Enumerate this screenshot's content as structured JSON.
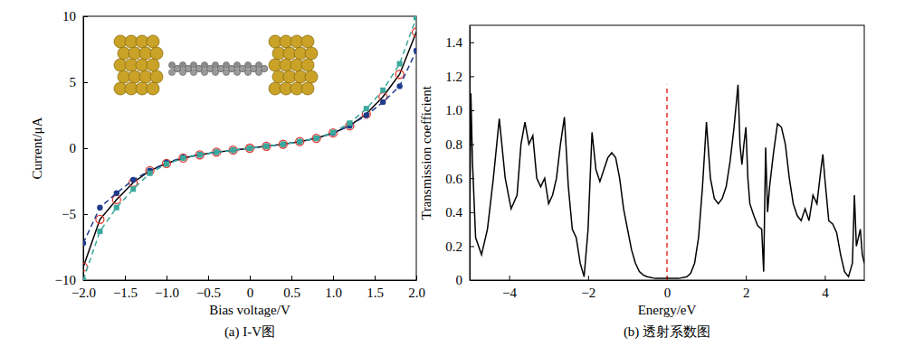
{
  "chart_data": [
    {
      "type": "line",
      "title": "(a) I-V图",
      "x_label": "Bias voltage/V",
      "y_label": "Current/μA",
      "xlim": [
        -2,
        2
      ],
      "ylim": [
        -10,
        10
      ],
      "xticks": [
        {
          "value": -2,
          "label": "−2.0"
        },
        {
          "value": -1.5,
          "label": "−1.5"
        },
        {
          "value": -1,
          "label": "−1.0"
        },
        {
          "value": -0.5,
          "label": "−0.5"
        },
        0,
        0.5,
        {
          "value": 1,
          "label": "1.0"
        },
        1.5,
        {
          "value": 2,
          "label": "2.0"
        }
      ],
      "yticks": [
        {
          "value": -10,
          "label": "−10"
        },
        {
          "value": -5,
          "label": "−5"
        },
        0,
        5,
        10
      ],
      "series": [
        {
          "color": "#000000",
          "line_style": "solid",
          "marker": "none",
          "x": [
            -2,
            -1.8,
            -1.6,
            -1.4,
            -1.2,
            -1,
            -0.8,
            -0.6,
            -0.4,
            -0.2,
            0,
            0.2,
            0.4,
            0.6,
            0.8,
            1,
            1.2,
            1.4,
            1.6,
            1.8,
            2
          ],
          "values": [
            -9.0,
            -5.4,
            -3.9,
            -2.6,
            -1.7,
            -1.15,
            -0.75,
            -0.5,
            -0.3,
            -0.15,
            0,
            0.15,
            0.3,
            0.5,
            0.75,
            1.15,
            1.7,
            2.6,
            3.9,
            5.6,
            8.8
          ]
        },
        {
          "color": "#e03c31",
          "line_style": "none",
          "marker": "open-circle",
          "x": [
            -2,
            -1.8,
            -1.6,
            -1.4,
            -1.2,
            -1,
            -0.8,
            -0.6,
            -0.4,
            -0.2,
            0,
            0.2,
            0.4,
            0.6,
            0.8,
            1,
            1.2,
            1.4,
            1.6,
            1.8,
            2
          ],
          "values": [
            -9.0,
            -5.4,
            -3.9,
            -2.6,
            -1.7,
            -1.15,
            -0.75,
            -0.5,
            -0.3,
            -0.15,
            0,
            0.15,
            0.3,
            0.5,
            0.75,
            1.15,
            1.7,
            2.6,
            3.9,
            5.6,
            8.8
          ]
        },
        {
          "color": "#1f3b8c",
          "line_style": "dashed",
          "marker": "circle",
          "x": [
            -2,
            -1.8,
            -1.6,
            -1.4,
            -1.2,
            -1,
            -0.8,
            -0.6,
            -0.4,
            -0.2,
            0,
            0.2,
            0.4,
            0.6,
            0.8,
            1,
            1.2,
            1.4,
            1.6,
            1.8,
            2
          ],
          "values": [
            -7.2,
            -4.5,
            -3.4,
            -2.4,
            -1.7,
            -1.1,
            -0.7,
            -0.5,
            -0.3,
            -0.15,
            0,
            0.15,
            0.3,
            0.5,
            0.75,
            1.15,
            1.7,
            2.5,
            3.5,
            4.7,
            7.4
          ]
        },
        {
          "color": "#3aa89b",
          "line_style": "dashed",
          "marker": "square",
          "x": [
            -2,
            -1.8,
            -1.6,
            -1.4,
            -1.2,
            -1,
            -0.8,
            -0.6,
            -0.4,
            -0.2,
            0,
            0.2,
            0.4,
            0.6,
            0.8,
            1,
            1.2,
            1.4,
            1.6,
            1.8,
            2
          ],
          "values": [
            -10,
            -6.3,
            -4.5,
            -3.1,
            -1.9,
            -1.2,
            -0.75,
            -0.5,
            -0.3,
            -0.15,
            0,
            0.15,
            0.3,
            0.5,
            0.75,
            1.2,
            1.9,
            3.0,
            4.4,
            6.4,
            9.9
          ]
        }
      ]
    },
    {
      "type": "line",
      "title": "(b) 透射系数图",
      "x_label": "Energy/eV",
      "y_label": "Transmission coefficient",
      "xlim": [
        -5,
        5
      ],
      "ylim": [
        0,
        1.5
      ],
      "xticks": [
        {
          "value": -4,
          "label": "−4"
        },
        {
          "value": -2,
          "label": "−2"
        },
        0,
        2,
        4
      ],
      "yticks": [
        0,
        0.2,
        0.4,
        0.6,
        0.8,
        {
          "value": 1,
          "label": "1.0"
        },
        1.2,
        1.4
      ],
      "vline": {
        "x": 0,
        "y": [
          0,
          1.15
        ],
        "color": "#e03c31",
        "line_style": "dashed"
      },
      "series": [
        {
          "color": "#000000",
          "line_style": "solid",
          "marker": "none",
          "x": [
            -5,
            -4.97,
            -4.93,
            -4.85,
            -4.7,
            -4.55,
            -4.4,
            -4.25,
            -4.1,
            -3.95,
            -3.8,
            -3.7,
            -3.6,
            -3.5,
            -3.4,
            -3.3,
            -3.2,
            -3.1,
            -3.0,
            -2.9,
            -2.8,
            -2.7,
            -2.6,
            -2.5,
            -2.4,
            -2.3,
            -2.2,
            -2.1,
            -2.0,
            -1.9,
            -1.8,
            -1.7,
            -1.6,
            -1.5,
            -1.4,
            -1.3,
            -1.2,
            -1.1,
            -1.0,
            -0.9,
            -0.8,
            -0.7,
            -0.6,
            -0.5,
            -0.3,
            0,
            0.3,
            0.5,
            0.6,
            0.7,
            0.8,
            0.9,
            1.0,
            1.1,
            1.2,
            1.3,
            1.4,
            1.5,
            1.6,
            1.7,
            1.8,
            1.85,
            1.9,
            1.95,
            2.0,
            2.05,
            2.1,
            2.2,
            2.3,
            2.4,
            2.45,
            2.5,
            2.55,
            2.6,
            2.7,
            2.8,
            2.9,
            3.0,
            3.1,
            3.2,
            3.3,
            3.4,
            3.5,
            3.6,
            3.7,
            3.8,
            3.9,
            3.95,
            4.0,
            4.1,
            4.2,
            4.3,
            4.4,
            4.5,
            4.6,
            4.7,
            4.75,
            4.8,
            4.9,
            4.95,
            5.0
          ],
          "values": [
            0.3,
            1.1,
            0.7,
            0.25,
            0.15,
            0.3,
            0.6,
            0.95,
            0.6,
            0.42,
            0.5,
            0.8,
            0.93,
            0.8,
            0.85,
            0.6,
            0.55,
            0.6,
            0.45,
            0.5,
            0.6,
            0.8,
            0.96,
            0.55,
            0.3,
            0.25,
            0.1,
            0.02,
            0.3,
            0.87,
            0.65,
            0.58,
            0.65,
            0.72,
            0.75,
            0.72,
            0.6,
            0.42,
            0.3,
            0.18,
            0.1,
            0.05,
            0.03,
            0.02,
            0.01,
            0.01,
            0.01,
            0.02,
            0.04,
            0.1,
            0.25,
            0.55,
            0.93,
            0.6,
            0.48,
            0.45,
            0.48,
            0.55,
            0.7,
            0.9,
            1.15,
            0.8,
            0.68,
            0.8,
            0.9,
            0.6,
            0.45,
            0.38,
            0.32,
            0.3,
            0.05,
            0.78,
            0.4,
            0.55,
            0.75,
            0.92,
            0.9,
            0.8,
            0.6,
            0.45,
            0.38,
            0.35,
            0.42,
            0.35,
            0.5,
            0.45,
            0.65,
            0.74,
            0.6,
            0.35,
            0.33,
            0.28,
            0.15,
            0.05,
            0.02,
            0.1,
            0.5,
            0.2,
            0.3,
            0.15,
            0.1
          ]
        }
      ]
    }
  ]
}
